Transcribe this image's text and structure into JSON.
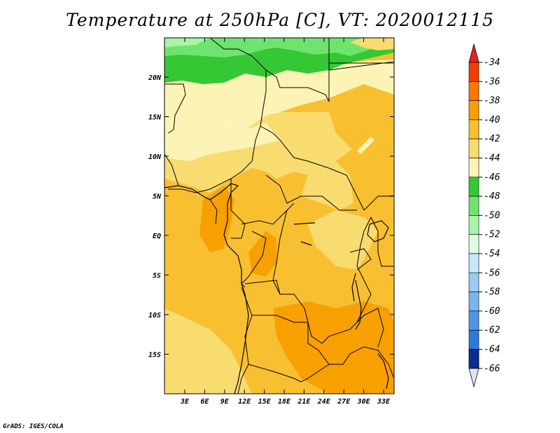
{
  "title": "Temperature at 250hPa [C], VT: 2020012115",
  "credit": "GrADS: IGES/COLA",
  "axes": {
    "lat_labels": [
      "20N",
      "15N",
      "10N",
      "5N",
      "EQ",
      "5S",
      "10S",
      "15S"
    ],
    "lon_labels": [
      "3E",
      "6E",
      "9E",
      "12E",
      "15E",
      "18E",
      "21E",
      "24E",
      "27E",
      "30E",
      "33E"
    ]
  },
  "colorbar": {
    "labels": [
      "-34",
      "-36",
      "-38",
      "-40",
      "-42",
      "-44",
      "-46",
      "-48",
      "-50",
      "-52",
      "-54",
      "-56",
      "-58",
      "-60",
      "-62",
      "-64",
      "-66"
    ],
    "colors": [
      "#f03c00",
      "#f87800",
      "#f8a000",
      "#f8c030",
      "#f8dc70",
      "#fcf4b4",
      "#34c834",
      "#6ee46e",
      "#a8f4a8",
      "#e0fce0",
      "#c6e6fa",
      "#9ccaf4",
      "#78b4f0",
      "#4e96e8",
      "#2e78dc",
      "#1a5ac8",
      "#0a2c94"
    ],
    "top_arrow_color": "#e82020",
    "bottom_arrow_color": "#e4e4f8"
  }
}
